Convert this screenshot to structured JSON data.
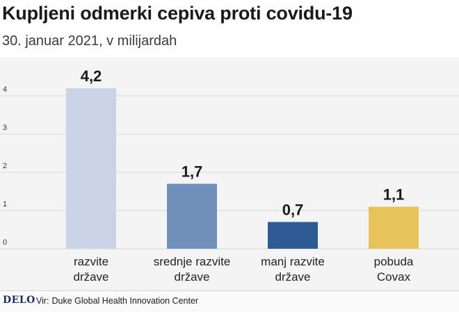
{
  "title": "Kupljeni odmerki cepiva proti covidu-19",
  "subtitle": "30. januar 2021, v milijardah",
  "chart_data": {
    "type": "bar",
    "categories": [
      [
        "razvite",
        "države"
      ],
      [
        "srednje razvite",
        "države"
      ],
      [
        "manj razvite",
        "države"
      ],
      [
        "pobuda",
        "Covax"
      ]
    ],
    "values": [
      4.2,
      1.7,
      0.7,
      1.1
    ],
    "value_labels": [
      "4,2",
      "1,7",
      "0,7",
      "1,1"
    ],
    "colors": [
      "#cad4e6",
      "#7191bc",
      "#2e5b93",
      "#e8c25a"
    ],
    "yticks": [
      0,
      1,
      2,
      3,
      4
    ],
    "ylim": [
      0,
      4.5
    ],
    "grid": true
  },
  "footer": {
    "logo": "DELO",
    "source_prefix": "Vir:",
    "source": "Duke Global Health Innovation Center"
  }
}
